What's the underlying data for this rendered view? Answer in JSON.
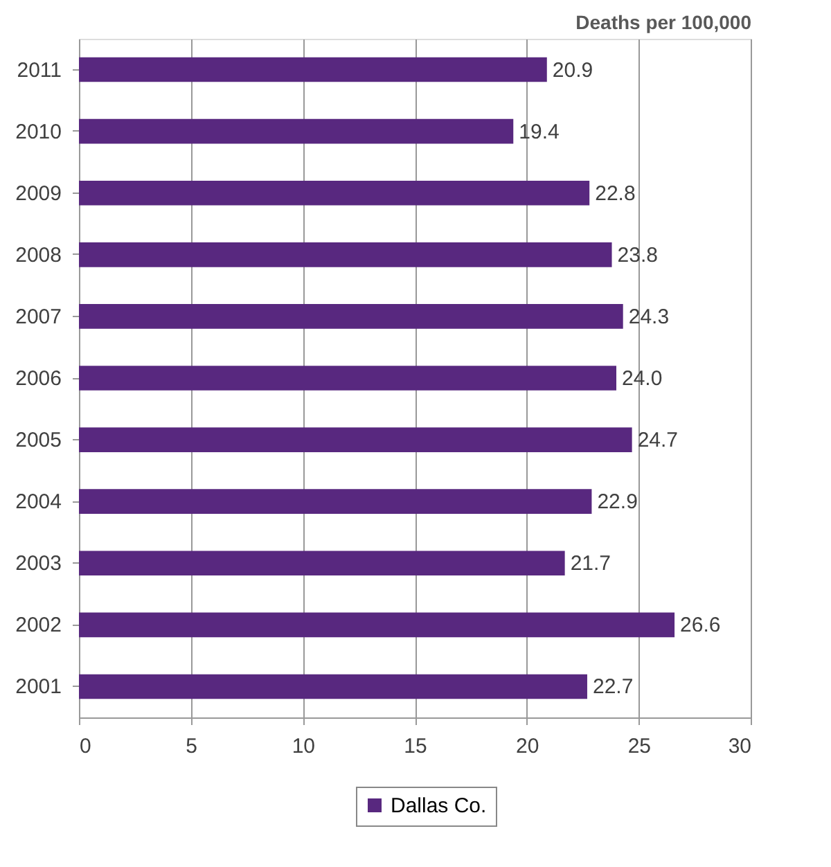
{
  "chart_data": {
    "type": "bar",
    "orientation": "horizontal",
    "title": "Deaths per 100,000",
    "categories": [
      "2011",
      "2010",
      "2009",
      "2008",
      "2007",
      "2006",
      "2005",
      "2004",
      "2003",
      "2002",
      "2001"
    ],
    "series": [
      {
        "name": "Dallas Co.",
        "color": "#58287f",
        "values": [
          20.9,
          19.4,
          22.8,
          23.8,
          24.3,
          24.0,
          24.7,
          22.9,
          21.7,
          26.6,
          22.7
        ],
        "value_labels": [
          "20.9",
          "19.4",
          "22.8",
          "23.8",
          "24.3",
          "24.0",
          "24.7",
          "22.9",
          "21.7",
          "26.6",
          "22.7"
        ]
      }
    ],
    "xlim": [
      0,
      30
    ],
    "xticks": [
      0,
      5,
      10,
      15,
      20,
      25,
      30
    ],
    "grid": "x",
    "legend": "bottom"
  }
}
